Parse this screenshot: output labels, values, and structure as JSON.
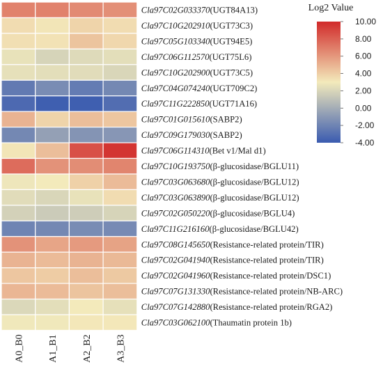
{
  "chart_data": {
    "type": "heatmap",
    "columns": [
      "A0_B0",
      "A1_B1",
      "A2_B2",
      "A3_B3"
    ],
    "rows": [
      {
        "gene": "Cla97C02G033370",
        "annotation": "(UGT84A13)",
        "values": [
          6.8,
          6.8,
          6.5,
          6.3
        ]
      },
      {
        "gene": "Cla97C10G202910",
        "annotation": "(UGT73C3)",
        "values": [
          3.5,
          3.2,
          3.8,
          3.5
        ]
      },
      {
        "gene": "Cla97C05G103340",
        "annotation": "(UGT94E5)",
        "values": [
          3.4,
          3.3,
          4.4,
          3.7
        ]
      },
      {
        "gene": "Cla97C06G112570",
        "annotation": "(UGT75L6)",
        "values": [
          2.6,
          1.9,
          2.2,
          2.4
        ]
      },
      {
        "gene": "Cla97C10G202900",
        "annotation": "(UGT73C5)",
        "values": [
          2.5,
          2.4,
          2.3,
          2.0
        ]
      },
      {
        "gene": "Cla97C04G074240",
        "annotation": "(UGT709C2)",
        "values": [
          -2.5,
          -1.6,
          -2.4,
          -1.8
        ]
      },
      {
        "gene": "Cla97C11G222850",
        "annotation": "(UGT71A16)",
        "values": [
          -3.3,
          -3.8,
          -3.8,
          -3.1
        ]
      },
      {
        "gene": "Cla97C01G015610",
        "annotation": "(SABP2)",
        "values": [
          5.0,
          3.8,
          4.6,
          4.3
        ]
      },
      {
        "gene": "Cla97C09G179030",
        "annotation": "(SABP2)",
        "values": [
          -1.8,
          -0.6,
          -1.2,
          -1.1
        ]
      },
      {
        "gene": "Cla97C06G114310",
        "annotation": "(Bet v1/Mal d1)",
        "values": [
          3.2,
          4.6,
          8.6,
          9.6
        ]
      },
      {
        "gene": "Cla97C10G193750",
        "annotation": "(β-glucosidase/BGLU11)",
        "values": [
          7.6,
          6.2,
          6.4,
          6.7
        ]
      },
      {
        "gene": "Cla97C03G063680",
        "annotation": "(β-glucosidase/BGLU12)",
        "values": [
          2.8,
          3.0,
          3.9,
          4.7
        ]
      },
      {
        "gene": "Cla97C03G063890",
        "annotation": "(β-glucosidase/BGLU12)",
        "values": [
          2.3,
          2.0,
          2.6,
          3.5
        ]
      },
      {
        "gene": "Cla97C02G050220",
        "annotation": "(β-glucosidase/BGLU4)",
        "values": [
          1.8,
          1.5,
          1.6,
          1.9
        ]
      },
      {
        "gene": "Cla97C11G216160",
        "annotation": "(β-glucosidase/BGLU42)",
        "values": [
          -2.0,
          -1.8,
          -1.6,
          -1.7
        ]
      },
      {
        "gene": "Cla97C08G145650",
        "annotation": "(Resistance-related protein/TIR)",
        "values": [
          6.2,
          5.5,
          5.9,
          5.6
        ]
      },
      {
        "gene": "Cla97C02G041940",
        "annotation": "(Resistance-related protein/TIR)",
        "values": [
          5.0,
          4.7,
          5.0,
          4.8
        ]
      },
      {
        "gene": "Cla97C02G041960",
        "annotation": "(Resistance-related protein/DSC1)",
        "values": [
          4.3,
          4.1,
          4.6,
          4.2
        ]
      },
      {
        "gene": "Cla97C07G131330",
        "annotation": "(Resistance-related protein/NB-ARC)",
        "values": [
          4.9,
          4.7,
          4.4,
          4.6
        ]
      },
      {
        "gene": "Cla97C07G142880",
        "annotation": "(Resistance-related protein/RGA2)",
        "values": [
          2.1,
          2.4,
          3.0,
          2.5
        ]
      },
      {
        "gene": "Cla97C03G062100",
        "annotation": "(Thaumatin protein 1b)",
        "values": [
          2.9,
          2.9,
          3.1,
          3.1
        ]
      }
    ],
    "legend": {
      "title": "Log2 Value",
      "ticks": [
        "10.00",
        "8.00",
        "6.00",
        "4.00",
        "2.00",
        "0.00",
        "-2.00",
        "-4.00"
      ],
      "range": [
        -4,
        10
      ],
      "placement": "top-right"
    },
    "colors": {
      "low": "#3a5bb0",
      "mid": "#f3eabb",
      "high": "#d12a2a"
    }
  }
}
